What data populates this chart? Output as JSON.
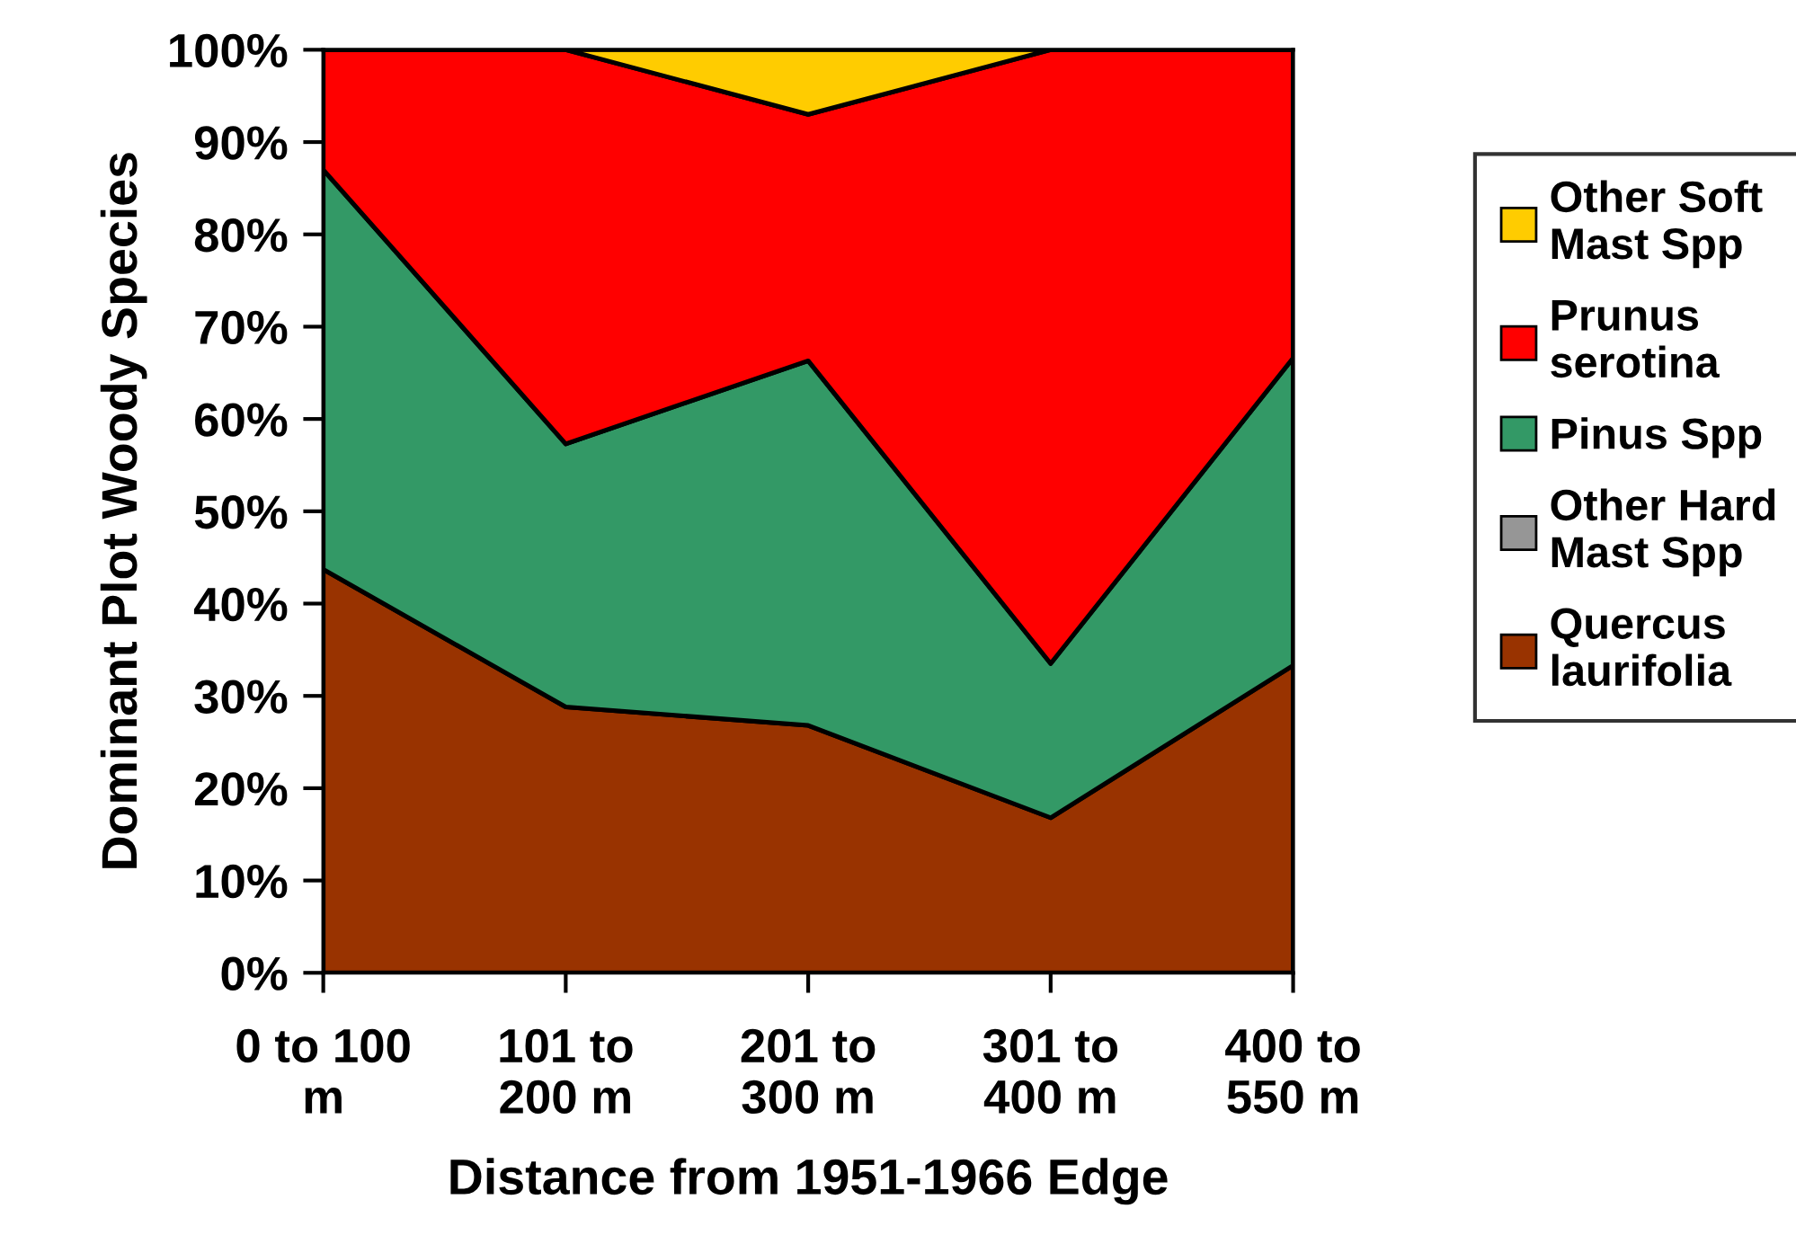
{
  "chart_data": {
    "type": "area",
    "stacked": true,
    "xlabel": "Distance from 1951-1966 Edge",
    "ylabel": "Dominant Plot Woody Species",
    "categories": [
      "0 to 100 m",
      "101 to 200 m",
      "201 to 300 m",
      "301 to 400 m",
      "400 to 550 m"
    ],
    "series": [
      {
        "name": "Quercus laurifolia",
        "color": "#993300",
        "values": [
          43.7,
          28.8,
          26.8,
          16.8,
          33.3
        ]
      },
      {
        "name": "Other Hard Mast Spp",
        "color": "#969696",
        "values": [
          null,
          null,
          null,
          null,
          null
        ]
      },
      {
        "name": "Pinus Spp",
        "color": "#339966",
        "values": [
          43.3,
          28.5,
          39.5,
          16.7,
          33.3
        ]
      },
      {
        "name": "Prunus serotina",
        "color": "#ff0000",
        "values": [
          13.0,
          42.7,
          26.7,
          66.5,
          33.4
        ]
      },
      {
        "name": "Other Soft Mast Spp",
        "color": "#ffcc00",
        "values": [
          0,
          0,
          7.0,
          0,
          0
        ]
      }
    ],
    "ylim": [
      0,
      100
    ],
    "yticks": [
      {
        "value": 0,
        "label": "0%"
      },
      {
        "value": 10,
        "label": "10%"
      },
      {
        "value": 20,
        "label": "20%"
      },
      {
        "value": 30,
        "label": "30%"
      },
      {
        "value": 40,
        "label": "40%"
      },
      {
        "value": 50,
        "label": "50%"
      },
      {
        "value": 60,
        "label": "60%"
      },
      {
        "value": 70,
        "label": "70%"
      },
      {
        "value": 80,
        "label": "80%"
      },
      {
        "value": 90,
        "label": "90%"
      },
      {
        "value": 100,
        "label": "100%"
      }
    ],
    "grid": false,
    "legend": "right"
  }
}
